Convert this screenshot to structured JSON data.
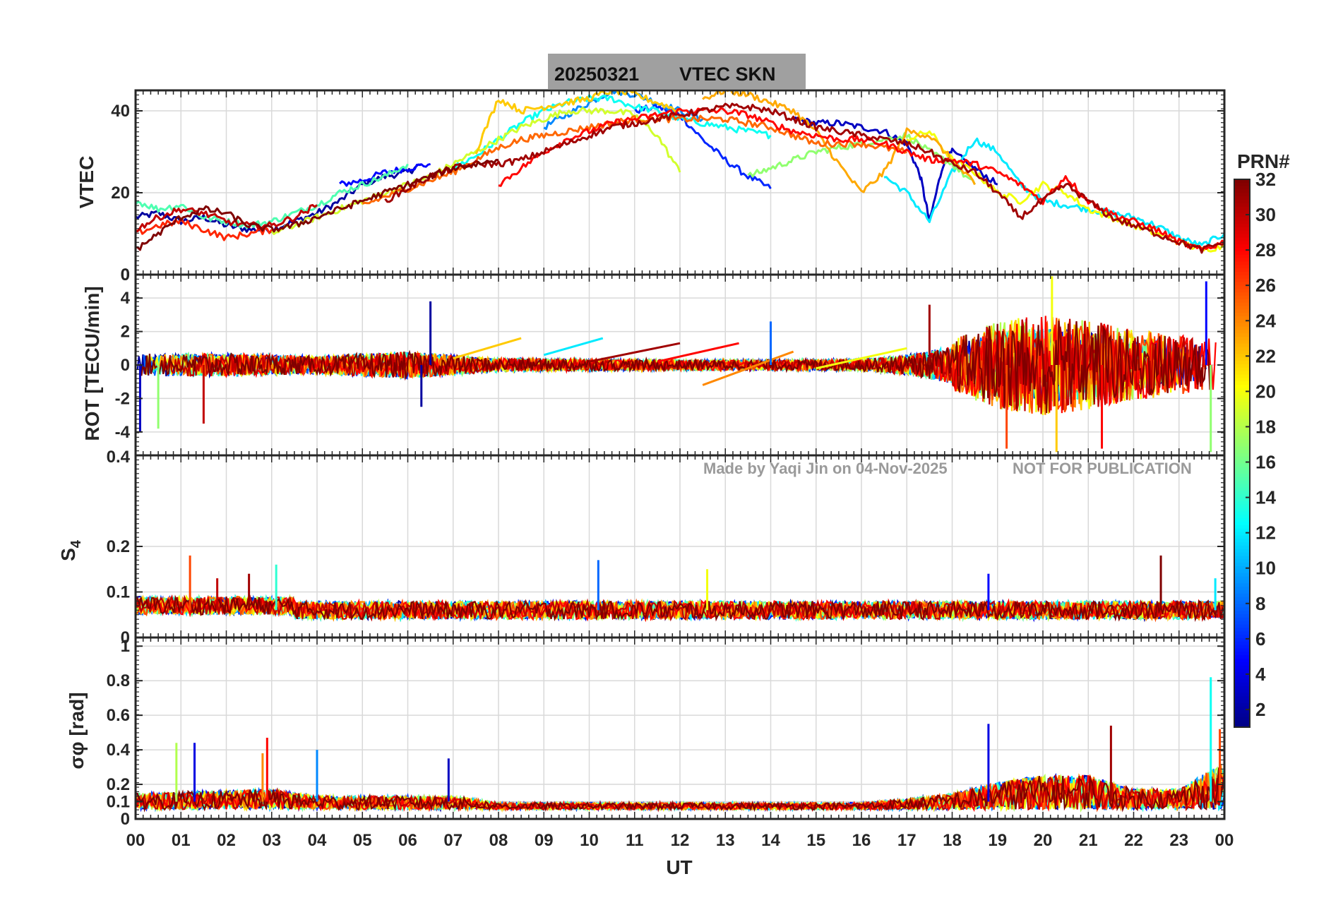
{
  "figure": {
    "title_date": "20250321",
    "title_text": "VTEC  SKN",
    "xlabel": "UT",
    "watermark_author": "Made by Yaqi Jin on 04-Nov-2025",
    "watermark_notice": "NOT FOR PUBLICATION",
    "colorbar_label": "PRN#",
    "colorbar_ticks": [
      "2",
      "4",
      "6",
      "8",
      "10",
      "12",
      "14",
      "16",
      "18",
      "20",
      "22",
      "24",
      "26",
      "28",
      "30",
      "32"
    ],
    "title_box_color": "#a0a0a0",
    "grid_color": "#d9d9d9"
  },
  "chart_data": [
    {
      "type": "line",
      "panel": "vtec",
      "ylabel": "VTEC",
      "x_ticklabels": [
        "00",
        "01",
        "02",
        "03",
        "04",
        "05",
        "06",
        "07",
        "08",
        "09",
        "10",
        "11",
        "12",
        "13",
        "14",
        "15",
        "16",
        "17",
        "18",
        "19",
        "20",
        "21",
        "22",
        "23",
        "00"
      ],
      "xlim": [
        0,
        24
      ],
      "ylim": [
        0,
        45
      ],
      "y_ticks": [
        0,
        20,
        40
      ],
      "grid": true,
      "colormap": "jet",
      "series": [
        {
          "prn": 2,
          "x": [
            0,
            0.5,
            1,
            1.5,
            2,
            2.5,
            3,
            3.5,
            4,
            4.5,
            5,
            5.5,
            6,
            6.3
          ],
          "y": [
            14,
            15,
            13,
            14,
            12,
            11,
            11,
            13,
            15,
            18,
            22,
            24,
            25,
            27
          ]
        },
        {
          "prn": 5,
          "x": [
            4.5,
            5,
            5.5,
            6,
            6.5
          ],
          "y": [
            22,
            23,
            25,
            26,
            27
          ]
        },
        {
          "prn": 6,
          "x": [
            11,
            11.5,
            12,
            12.5,
            13,
            13.5,
            14
          ],
          "y": [
            40,
            41,
            39,
            33,
            28,
            24,
            21
          ]
        },
        {
          "prn": 3,
          "x": [
            14.5,
            15,
            15.5,
            16,
            16.5,
            17,
            17.3,
            17.5,
            17.8,
            18,
            18.5,
            19
          ],
          "y": [
            38,
            37,
            37,
            36,
            35,
            32,
            24,
            13,
            27,
            30,
            26,
            22
          ]
        },
        {
          "prn": 9,
          "x": [
            9,
            9.5,
            10,
            10.5,
            11,
            11.5,
            12,
            12.5
          ],
          "y": [
            36,
            39,
            42,
            45,
            44,
            42,
            40,
            38
          ]
        },
        {
          "prn": 12,
          "x": [
            16.5,
            17,
            17.5,
            18,
            18.5,
            19,
            19.5,
            20,
            20.5,
            21,
            21.5,
            22,
            22.5,
            23,
            23.5,
            24
          ],
          "y": [
            24,
            20,
            13,
            25,
            33,
            30,
            22,
            18,
            17,
            16,
            15,
            14,
            12,
            9,
            7,
            10
          ]
        },
        {
          "prn": 13,
          "x": [
            7,
            7.5,
            8,
            8.5,
            9,
            9.5,
            10,
            10.5,
            11,
            11.5,
            12,
            12.5,
            13,
            13.5,
            14
          ],
          "y": [
            26,
            29,
            33,
            37,
            40,
            42,
            43,
            43,
            41,
            40,
            38,
            37,
            36,
            35,
            34
          ]
        },
        {
          "prn": 15,
          "x": [
            0,
            0.5,
            1,
            1.5,
            2,
            2.5,
            3,
            3.5,
            4,
            4.5,
            5,
            5.5,
            6
          ],
          "y": [
            18,
            16,
            17,
            14,
            13,
            12,
            13,
            15,
            17,
            20,
            22,
            24,
            27
          ]
        },
        {
          "prn": 17,
          "x": [
            13.5,
            14,
            14.5,
            15,
            15.5,
            16,
            16.5,
            17,
            17.5,
            18,
            18.5
          ],
          "y": [
            24,
            26,
            28,
            30,
            31,
            32,
            33,
            34,
            30,
            27,
            22
          ]
        },
        {
          "prn": 19,
          "x": [
            3,
            3.5,
            4,
            4.5,
            5,
            5.5,
            6,
            6.5,
            7,
            7.5,
            8,
            8.5,
            9,
            9.5,
            10,
            10.5,
            11,
            11.5,
            12
          ],
          "y": [
            10,
            12,
            14,
            16,
            18,
            20,
            22,
            24,
            27,
            30,
            33,
            36,
            38,
            40,
            40,
            40,
            39,
            34,
            25
          ]
        },
        {
          "prn": 20,
          "x": [
            17,
            17.5,
            18,
            18.5,
            19,
            19.5,
            20,
            20.5,
            21,
            21.5,
            22,
            22.5,
            23,
            23.5,
            24
          ],
          "y": [
            33,
            35,
            28,
            25,
            20,
            18,
            22,
            20,
            16,
            14,
            12,
            10,
            8,
            6,
            7
          ]
        },
        {
          "prn": 22,
          "x": [
            7.5,
            8,
            8.5,
            9,
            9.5,
            10,
            10.5,
            11,
            11.5,
            12
          ],
          "y": [
            30,
            43,
            40,
            41,
            42,
            43,
            45,
            44,
            42,
            40
          ]
        },
        {
          "prn": 23,
          "x": [
            12.5,
            13,
            13.5,
            14,
            14.5,
            15,
            15.5,
            16,
            16.5,
            17,
            17.5,
            18,
            18.5
          ],
          "y": [
            43,
            45,
            44,
            42,
            40,
            35,
            27,
            20,
            25,
            35,
            34,
            28,
            22
          ]
        },
        {
          "prn": 25,
          "x": [
            5,
            5.5,
            6,
            6.5,
            7,
            7.5,
            8,
            8.5,
            9,
            9.5,
            10,
            10.5,
            11,
            11.5,
            12,
            12.5,
            13,
            13.5,
            14,
            14.5,
            15,
            15.5,
            16,
            16.5,
            17
          ],
          "y": [
            17,
            19,
            21,
            23,
            25,
            28,
            31,
            33,
            34,
            35,
            36,
            37,
            38,
            38,
            38,
            38,
            38,
            37,
            36,
            34,
            32,
            32,
            32,
            31,
            30
          ]
        },
        {
          "prn": 27,
          "x": [
            0,
            0.5,
            1,
            1.5,
            2,
            2.5,
            3
          ],
          "y": [
            10,
            12,
            13,
            11,
            9,
            10,
            11
          ]
        },
        {
          "prn": 28,
          "x": [
            8,
            8.5,
            9,
            9.5,
            10,
            10.5,
            11,
            11.5,
            12,
            12.5,
            13,
            13.5,
            14,
            14.5,
            15,
            15.5,
            16,
            16.5,
            17,
            17.5,
            18,
            18.5,
            19,
            19.5,
            20,
            20.5,
            21,
            21.5,
            22,
            22.5,
            23,
            23.5,
            24
          ],
          "y": [
            22,
            26,
            30,
            33,
            35,
            37,
            38,
            39,
            40,
            40,
            40,
            39,
            37,
            35,
            34,
            33,
            33,
            32,
            30,
            28,
            28,
            27,
            25,
            22,
            18,
            24,
            18,
            15,
            13,
            11,
            8,
            6,
            8
          ]
        },
        {
          "prn": 30,
          "x": [
            0,
            0.5,
            1,
            1.5,
            2,
            2.5,
            3,
            3.5,
            4
          ],
          "y": [
            11,
            14,
            16,
            15,
            13,
            12,
            12,
            14,
            17
          ]
        },
        {
          "prn": 31,
          "x": [
            5.5,
            6,
            6.5,
            7,
            7.5,
            8,
            8.5,
            9,
            9.5,
            10,
            10.5,
            11,
            11.5,
            12,
            12.5,
            13,
            13.5,
            14,
            14.5,
            15,
            15.5,
            16,
            16.5,
            17,
            17.5,
            18,
            18.5,
            19,
            19.5,
            20,
            20.5,
            21,
            21.5,
            22,
            22.5,
            23,
            23.5,
            24
          ],
          "y": [
            18,
            21,
            24,
            26,
            27,
            27,
            28,
            30,
            32,
            34,
            36,
            37,
            38,
            39,
            40,
            41,
            41,
            40,
            38,
            36,
            35,
            34,
            33,
            32,
            30,
            27,
            25,
            20,
            14,
            18,
            22,
            18,
            14,
            12,
            10,
            8,
            6,
            8
          ]
        },
        {
          "prn": 32,
          "x": [
            0,
            0.5,
            1,
            1.5,
            2,
            2.5,
            3,
            3.5,
            4,
            4.5,
            5,
            5.5,
            6,
            6.5,
            7,
            7.5,
            8
          ],
          "y": [
            6,
            10,
            14,
            16,
            15,
            12,
            11,
            12,
            14,
            16,
            18,
            20,
            22,
            24,
            26,
            27,
            28
          ]
        }
      ]
    },
    {
      "type": "line",
      "panel": "rot",
      "ylabel": "ROT [TECU/min]",
      "xlim": [
        0,
        24
      ],
      "ylim": [
        -5.4,
        5.4
      ],
      "y_ticks": [
        -4,
        -2,
        0,
        2,
        4
      ],
      "y_ticklabels_extra": [
        "0.4",
        "0"
      ],
      "grid": true,
      "colormap": "jet",
      "noise_envelope": {
        "x": [
          0,
          2,
          4,
          6,
          8,
          10,
          12,
          14,
          16,
          17,
          18,
          19,
          20,
          21,
          22,
          23,
          24
        ],
        "amp": [
          1.5,
          1.5,
          1.2,
          1.8,
          0.9,
          0.8,
          0.7,
          0.7,
          0.8,
          1.3,
          2.5,
          4.5,
          5,
          4.5,
          3.5,
          3,
          2.5
        ]
      },
      "spikes": [
        {
          "prn": 2,
          "x": 6.5,
          "y": 3.8
        },
        {
          "prn": 2,
          "x": 6.3,
          "y": -2.5
        },
        {
          "prn": 3,
          "x": 0.1,
          "y": -4
        },
        {
          "prn": 30,
          "x": 1.5,
          "y": -3.5
        },
        {
          "prn": 17,
          "x": 0.5,
          "y": -3.8
        },
        {
          "prn": 8,
          "x": 14,
          "y": 2.6
        },
        {
          "prn": 31,
          "x": 17.5,
          "y": 3.6
        },
        {
          "prn": 26,
          "x": 19.2,
          "y": -5
        },
        {
          "prn": 20,
          "x": 20.2,
          "y": 5.3
        },
        {
          "prn": 22,
          "x": 20.3,
          "y": -5.2
        },
        {
          "prn": 28,
          "x": 21.3,
          "y": -5
        },
        {
          "prn": 5,
          "x": 23.6,
          "y": 5
        },
        {
          "prn": 17,
          "x": 23.7,
          "y": -5.2
        }
      ],
      "drift_lines": [
        {
          "prn": 22,
          "x": [
            7,
            8.5
          ],
          "y": [
            0.4,
            1.6
          ]
        },
        {
          "prn": 12,
          "x": [
            9,
            10.3
          ],
          "y": [
            0.6,
            1.6
          ]
        },
        {
          "prn": 31,
          "x": [
            10,
            12
          ],
          "y": [
            0.2,
            1.3
          ]
        },
        {
          "prn": 28,
          "x": [
            11.5,
            13.3
          ],
          "y": [
            0.2,
            1.3
          ]
        },
        {
          "prn": 24,
          "x": [
            12.5,
            14.5
          ],
          "y": [
            -1.2,
            0.8
          ]
        },
        {
          "prn": 20,
          "x": [
            15,
            17
          ],
          "y": [
            -0.2,
            1.0
          ]
        }
      ]
    },
    {
      "type": "line",
      "panel": "s4",
      "ylabel": "S4",
      "xlim": [
        0,
        24
      ],
      "ylim": [
        0,
        0.4
      ],
      "y_ticks": [
        0,
        0.1,
        0.2
      ],
      "y_ticklabels": [
        "0",
        "0.1",
        "0.2"
      ],
      "grid": true,
      "colormap": "jet",
      "baseline": 0.06,
      "noise_amp": 0.02,
      "spikes": [
        {
          "prn": 26,
          "x": 1.2,
          "y": 0.18
        },
        {
          "prn": 30,
          "x": 1.8,
          "y": 0.13
        },
        {
          "prn": 31,
          "x": 2.5,
          "y": 0.14
        },
        {
          "prn": 14,
          "x": 3.1,
          "y": 0.16
        },
        {
          "prn": 8,
          "x": 10.2,
          "y": 0.17
        },
        {
          "prn": 20,
          "x": 12.6,
          "y": 0.15
        },
        {
          "prn": 5,
          "x": 18.8,
          "y": 0.14
        },
        {
          "prn": 32,
          "x": 22.6,
          "y": 0.18
        },
        {
          "prn": 12,
          "x": 23.8,
          "y": 0.13
        }
      ]
    },
    {
      "type": "line",
      "panel": "sigma_phi",
      "ylabel": "σφ [rad]",
      "xlim": [
        0,
        24
      ],
      "ylim": [
        0,
        1.05
      ],
      "y_ticks": [
        0,
        0.1,
        0.2,
        0.4,
        0.6,
        0.8,
        1
      ],
      "y_ticklabels": [
        "0",
        "0.1",
        "0.2",
        "0.4",
        "0.6",
        "0.8",
        "1"
      ],
      "grid": true,
      "colormap": "jet",
      "baseline": 0.09,
      "noise_env": {
        "x": [
          0,
          3,
          4,
          6,
          7,
          8,
          12,
          16,
          17,
          18,
          19,
          20,
          21,
          22,
          23,
          24
        ],
        "amp": [
          0.12,
          0.15,
          0.1,
          0.1,
          0.1,
          0.05,
          0.05,
          0.05,
          0.08,
          0.12,
          0.2,
          0.25,
          0.25,
          0.15,
          0.15,
          0.35
        ]
      },
      "spikes": [
        {
          "prn": 18,
          "x": 0.9,
          "y": 0.44
        },
        {
          "prn": 4,
          "x": 1.3,
          "y": 0.44
        },
        {
          "prn": 28,
          "x": 2.9,
          "y": 0.47
        },
        {
          "prn": 24,
          "x": 2.8,
          "y": 0.38
        },
        {
          "prn": 9,
          "x": 4,
          "y": 0.4
        },
        {
          "prn": 3,
          "x": 6.9,
          "y": 0.35
        },
        {
          "prn": 4,
          "x": 18.8,
          "y": 0.55
        },
        {
          "prn": 31,
          "x": 21.5,
          "y": 0.54
        },
        {
          "prn": 13,
          "x": 23.7,
          "y": 0.82
        },
        {
          "prn": 26,
          "x": 23.9,
          "y": 0.52
        }
      ]
    }
  ]
}
